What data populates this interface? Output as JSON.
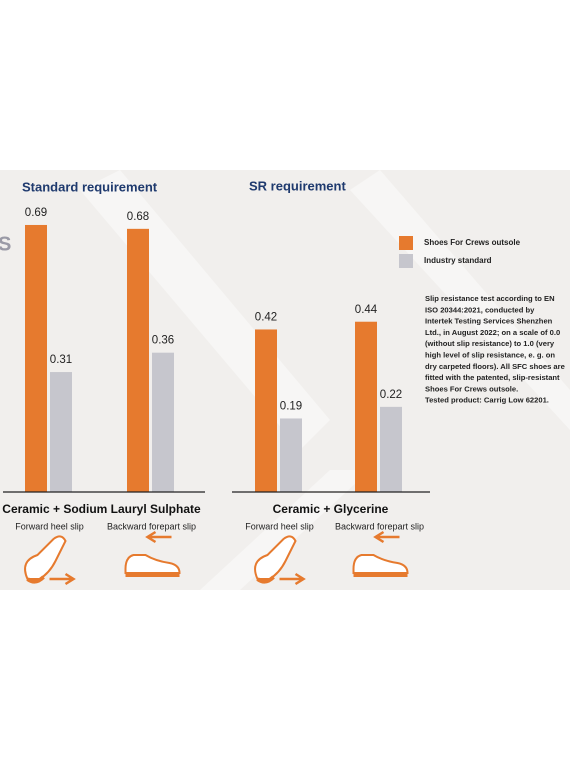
{
  "fragment": "S",
  "note": [
    "Slip resistance test according to EN",
    "ISO 20344:2021, conducted by",
    "Intertek Testing Services Shenzhen",
    "Ltd., in August 2022; on a scale of 0.0",
    "(without slip resistance) to 1.0 (very",
    "high level of slip resistance, e. g. on",
    "dry carpeted floors). All SFC shoes are",
    "fitted with the patented, slip-resistant",
    "Shoes For Crews outsole.",
    "Tested product: Carrig Low 62201."
  ],
  "chart_data": [
    {
      "type": "bar",
      "title": "Standard requirement",
      "group_label": "Ceramic + Sodium Lauryl Sulphate",
      "categories": [
        "Forward heel slip",
        "Backward forepart slip"
      ],
      "series": [
        {
          "name": "Shoes For Crews outsole",
          "color": "#e67a2e",
          "values": [
            0.69,
            0.68
          ]
        },
        {
          "name": "Industry standard",
          "color": "#c6c6cd",
          "values": [
            0.31,
            0.36
          ]
        }
      ]
    },
    {
      "type": "bar",
      "title": "SR requirement",
      "group_label": "Ceramic + Glycerine",
      "categories": [
        "Forward heel slip",
        "Backward forepart slip"
      ],
      "series": [
        {
          "color": "#e67a2e",
          "values": [
            0.42,
            0.44
          ]
        },
        {
          "color": "#c6c6cd",
          "values": [
            0.19,
            0.22
          ]
        }
      ]
    }
  ]
}
